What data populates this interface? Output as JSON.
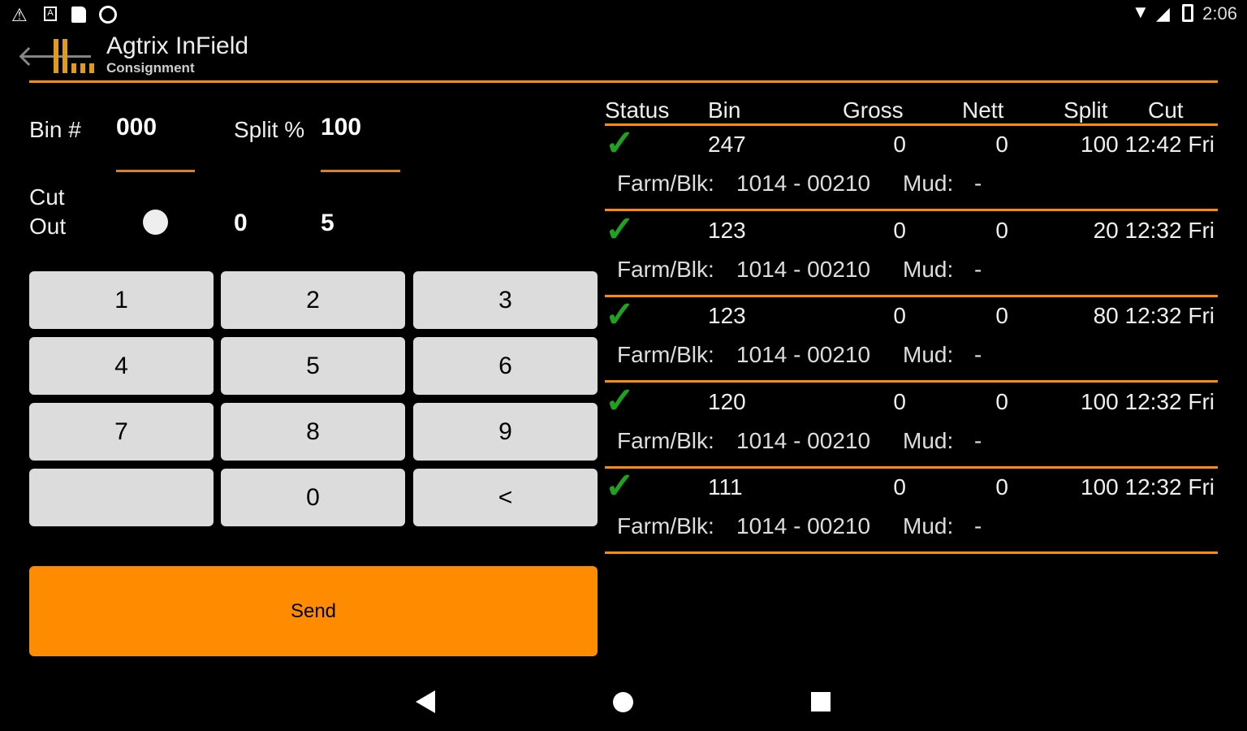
{
  "status_bar": {
    "left_icons": [
      "warning-icon",
      "a-icon",
      "sd-card-icon",
      "record-icon"
    ],
    "right_icons": [
      "wifi-icon",
      "signal-icon",
      "battery-icon"
    ],
    "time": "2:06"
  },
  "header": {
    "title": "Agtrix InField",
    "subtitle": "Consignment",
    "accent": "#ff8c00"
  },
  "form": {
    "bin_label": "Bin #",
    "bin_value": "000",
    "split_label": "Split %",
    "split_value": "100",
    "cut_label": "Cut",
    "out_label": "Out",
    "cut_value": "0",
    "out_value": "5"
  },
  "keypad": [
    "1",
    "2",
    "3",
    "4",
    "5",
    "6",
    "7",
    "8",
    "9",
    "",
    "0",
    "<"
  ],
  "send_label": "Send",
  "table": {
    "headers": [
      "Status",
      "Bin",
      "Gross",
      "Nett",
      "Split",
      "Cut"
    ],
    "farm_label": "Farm/Blk:",
    "mud_label": "Mud:",
    "rows": [
      {
        "status": "ok",
        "bin": "247",
        "gross": "0",
        "nett": "0",
        "split_cut": "100 12:42 Fri",
        "farm": "1014 - 00210",
        "mud": "-"
      },
      {
        "status": "ok",
        "bin": "123",
        "gross": "0",
        "nett": "0",
        "split_cut": "20 12:32 Fri",
        "farm": "1014 - 00210",
        "mud": "-"
      },
      {
        "status": "ok",
        "bin": "123",
        "gross": "0",
        "nett": "0",
        "split_cut": "80 12:32 Fri",
        "farm": "1014 - 00210",
        "mud": "-"
      },
      {
        "status": "ok",
        "bin": "120",
        "gross": "0",
        "nett": "0",
        "split_cut": "100 12:32 Fri",
        "farm": "1014 - 00210",
        "mud": "-"
      },
      {
        "status": "ok",
        "bin": "111",
        "gross": "0",
        "nett": "0",
        "split_cut": "100 12:32 Fri",
        "farm": "1014 - 00210",
        "mud": "-"
      }
    ]
  }
}
